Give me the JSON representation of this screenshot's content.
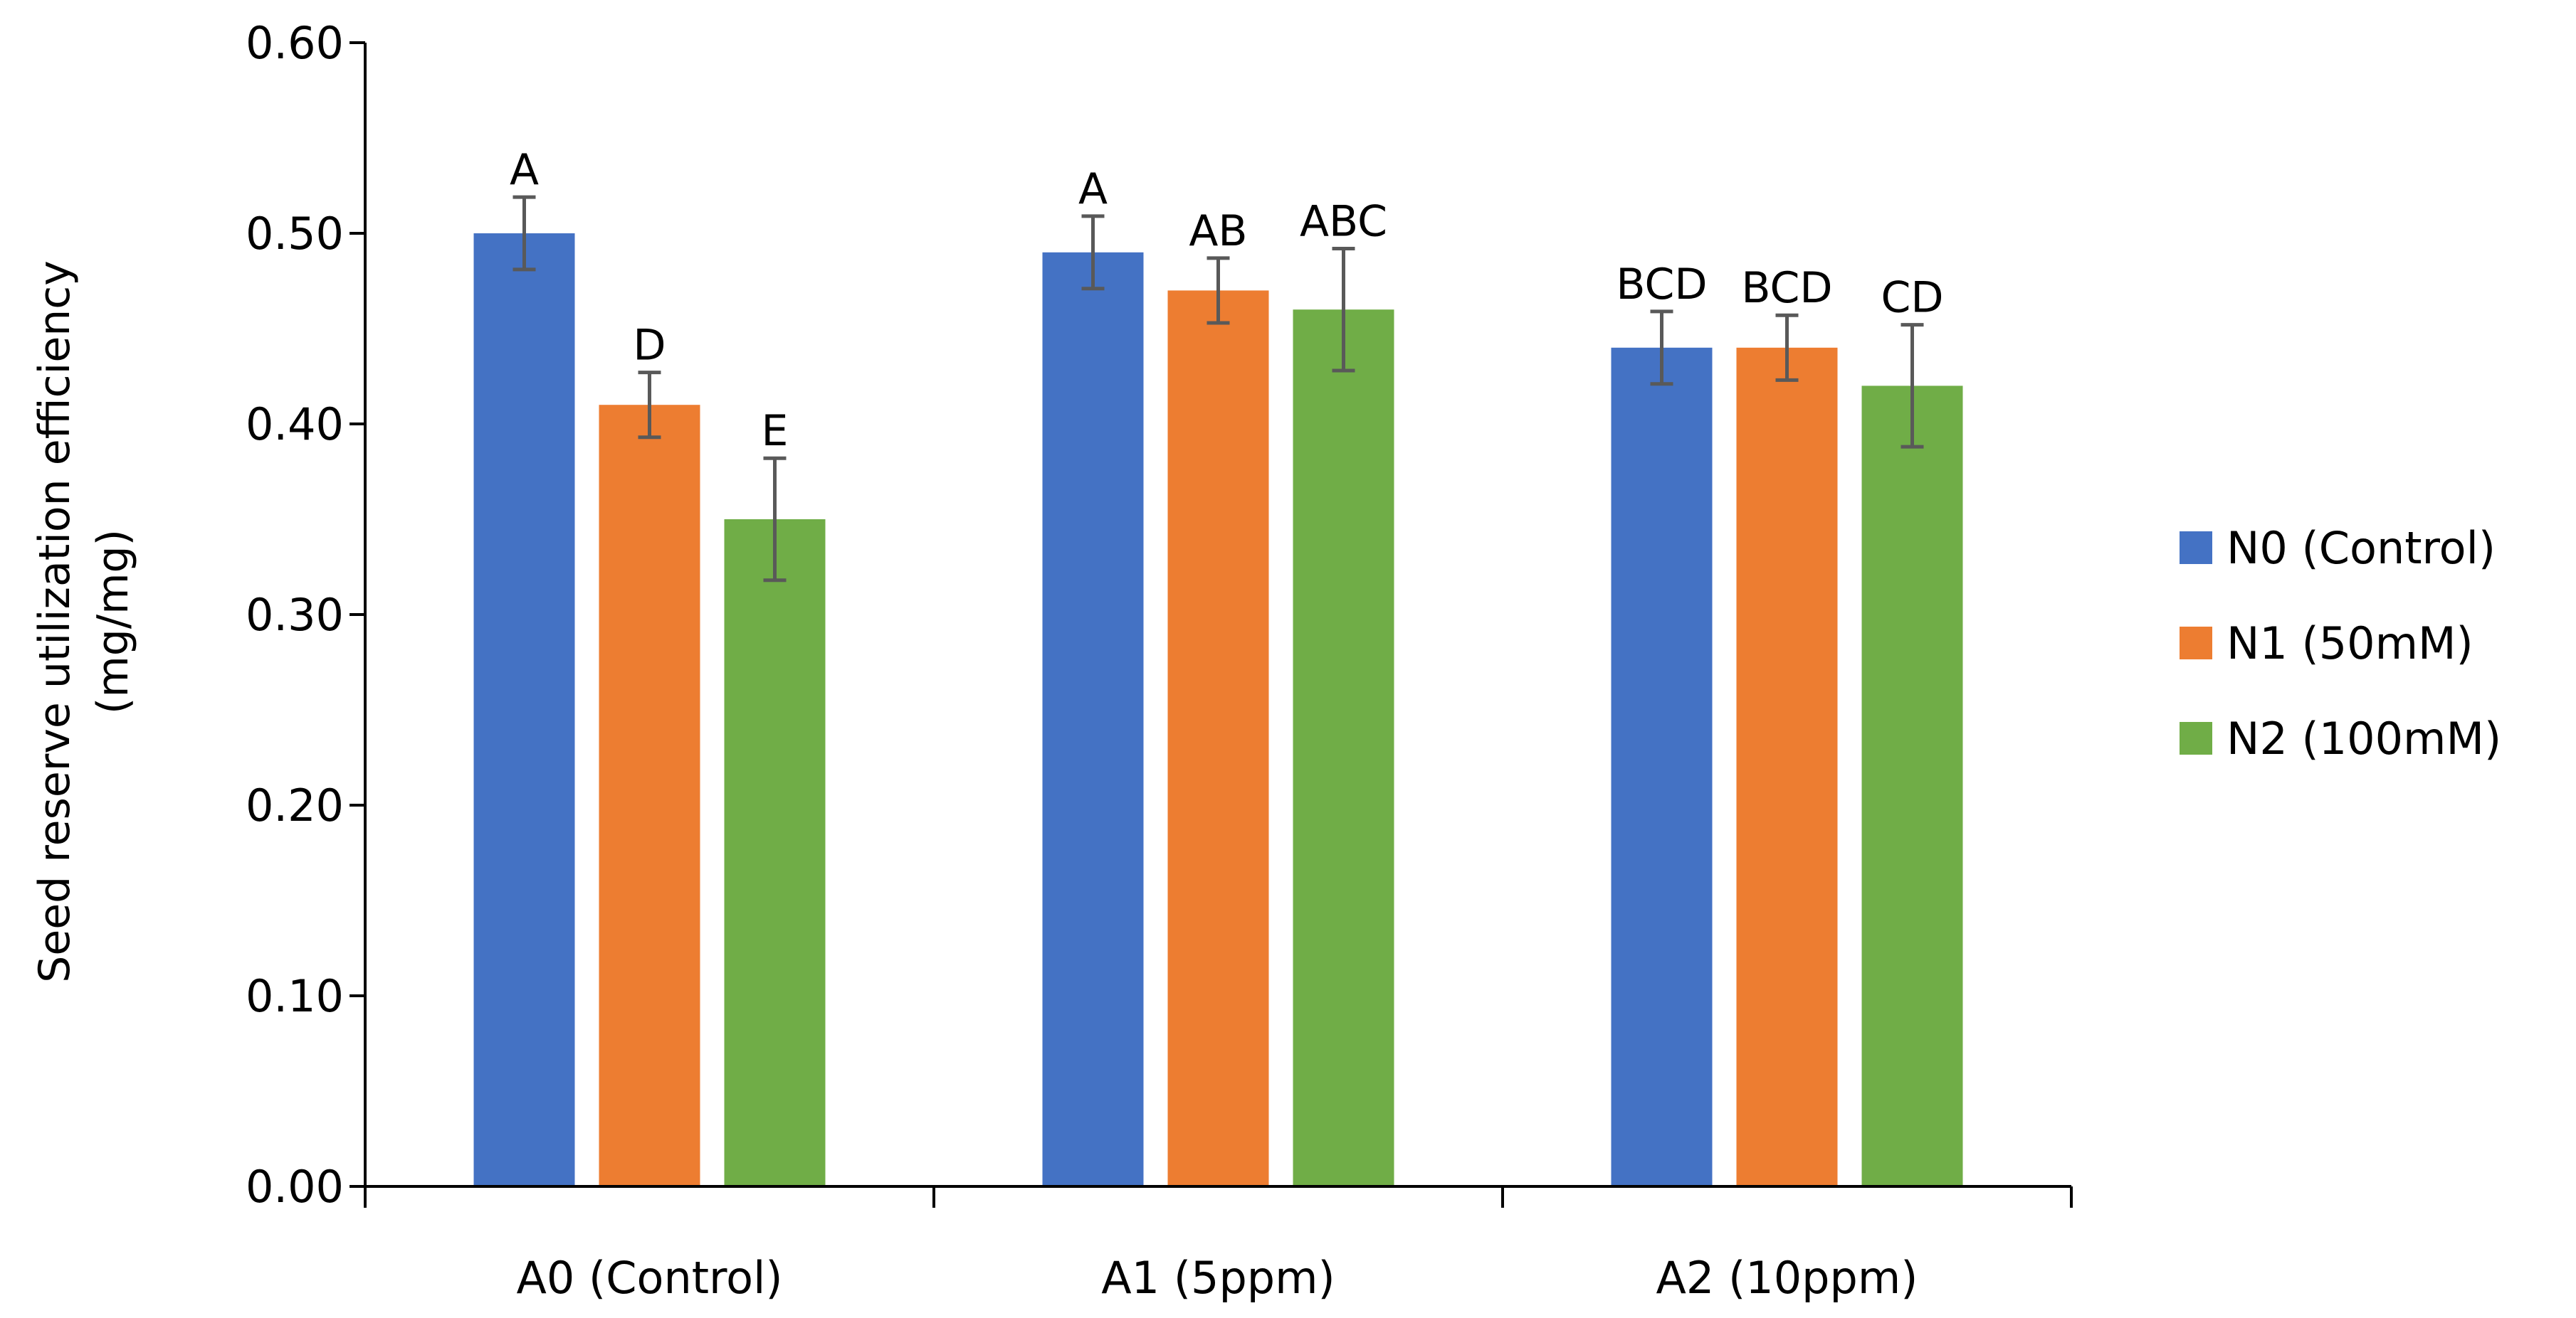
{
  "chart_data": {
    "type": "bar",
    "title": "",
    "xlabel": "",
    "ylabel_lines": [
      "Seed reserve utilization efficiency",
      "(mg/mg)"
    ],
    "ylim": [
      0,
      0.6
    ],
    "yticks": [
      "0.00",
      "0.10",
      "0.20",
      "0.30",
      "0.40",
      "0.50",
      "0.60"
    ],
    "ytick_values": [
      0,
      0.1,
      0.2,
      0.3,
      0.4,
      0.5,
      0.6
    ],
    "grid": false,
    "legend_position": "right",
    "categories": [
      "A0 (Control)",
      "A1 (5ppm)",
      "A2 (10ppm)"
    ],
    "series": [
      {
        "name": "N0 (Control)",
        "color": "#4472C4",
        "values": [
          0.5,
          0.49,
          0.44
        ],
        "errors": [
          0.019,
          0.019,
          0.019
        ],
        "letters": [
          "A",
          "A",
          "BCD"
        ]
      },
      {
        "name": "N1 (50mM)",
        "color": "#ED7D31",
        "values": [
          0.41,
          0.47,
          0.44
        ],
        "errors": [
          0.017,
          0.017,
          0.017
        ],
        "letters": [
          "D",
          "AB",
          "BCD"
        ]
      },
      {
        "name": "N2 (100mM)",
        "color": "#70AD47",
        "values": [
          0.35,
          0.46,
          0.42
        ],
        "errors": [
          0.032,
          0.032,
          0.032
        ],
        "letters": [
          "E",
          "ABC",
          "CD"
        ]
      }
    ]
  }
}
